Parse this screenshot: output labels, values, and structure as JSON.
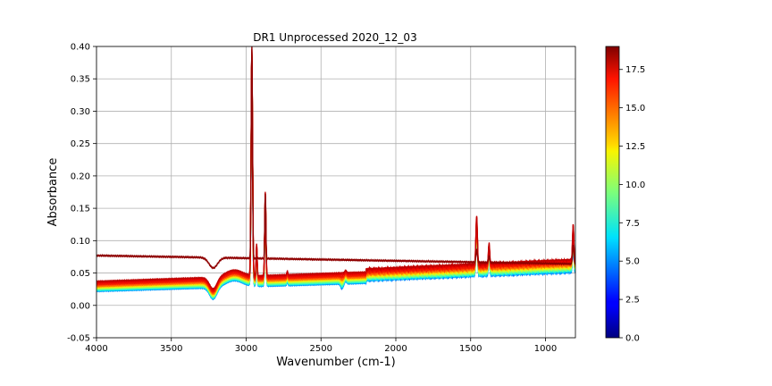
{
  "chart_data": {
    "type": "line",
    "title": "DR1 Unprocessed 2020_12_03",
    "xlabel": "Wavenumber (cm-1)",
    "ylabel": "Absorbance",
    "xlim": [
      4000,
      800
    ],
    "ylim": [
      -0.05,
      0.4
    ],
    "x_ticks": [
      4000,
      3500,
      3000,
      2500,
      2000,
      1500,
      1000
    ],
    "x_tick_labels": [
      "4000",
      "3500",
      "3000",
      "2500",
      "2000",
      "1500",
      "1000"
    ],
    "y_ticks": [
      -0.05,
      0.0,
      0.05,
      0.1,
      0.15,
      0.2,
      0.25,
      0.3,
      0.35,
      0.4
    ],
    "y_tick_labels": [
      "-0.05",
      "0.00",
      "0.05",
      "0.10",
      "0.15",
      "0.20",
      "0.25",
      "0.30",
      "0.35",
      "0.40"
    ],
    "grid": true,
    "colormap": "jet",
    "colorbar": {
      "range": [
        0,
        19
      ],
      "ticks": [
        0.0,
        2.5,
        5.0,
        7.5,
        10.0,
        12.5,
        15.0,
        17.5
      ],
      "tick_labels": [
        "0.0",
        "2.5",
        "5.0",
        "7.5",
        "10.0",
        "12.5",
        "15.0",
        "17.5"
      ]
    },
    "series": [
      {
        "index": 0,
        "color": "#00007f",
        "base": 0.03
      },
      {
        "index": 1,
        "color": "#0000c8",
        "base": 0.028
      },
      {
        "index": 2,
        "color": "#0010ff",
        "base": 0.025
      },
      {
        "index": 3,
        "color": "#0050ff",
        "base": 0.023
      },
      {
        "index": 4,
        "color": "#0090ff",
        "base": 0.022
      },
      {
        "index": 5,
        "color": "#00d0ff",
        "base": 0.023
      },
      {
        "index": 6,
        "color": "#29ffce",
        "base": 0.024
      },
      {
        "index": 7,
        "color": "#60ff97",
        "base": 0.025
      },
      {
        "index": 8,
        "color": "#97ff60",
        "base": 0.026
      },
      {
        "index": 9,
        "color": "#ceff29",
        "base": 0.027
      },
      {
        "index": 10,
        "color": "#ffe600",
        "base": 0.028
      },
      {
        "index": 11,
        "color": "#ffa700",
        "base": 0.029
      },
      {
        "index": 12,
        "color": "#ff6800",
        "base": 0.03
      },
      {
        "index": 13,
        "color": "#ff2900",
        "base": 0.032
      },
      {
        "index": 14,
        "color": "#ee1800",
        "base": 0.033
      },
      {
        "index": 15,
        "color": "#e80000",
        "base": 0.035
      },
      {
        "index": 16,
        "color": "#c00000",
        "base": 0.037
      },
      {
        "index": 17,
        "color": "#8f0000",
        "base": 0.077
      }
    ]
  }
}
